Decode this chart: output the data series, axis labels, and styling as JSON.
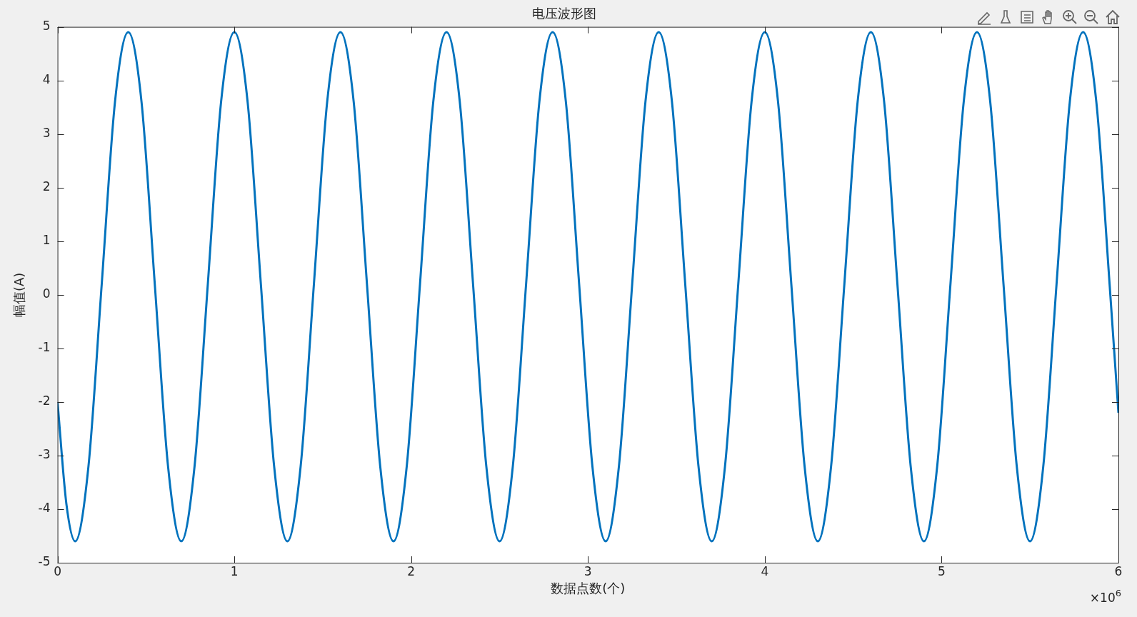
{
  "chart_data": {
    "type": "line",
    "title": "电压波形图",
    "xlabel": "数据点数(个)",
    "ylabel": "幅值(A)",
    "annotations": [
      "×10$^{6}$"
    ],
    "x": [
      0,
      0.05,
      0.1,
      0.175,
      0.25,
      0.325,
      0.4,
      0.475,
      0.55,
      0.625,
      0.7,
      0.775,
      0.85,
      0.925,
      1.0,
      1.075,
      1.15,
      1.225,
      1.3,
      1.375,
      1.45,
      1.525,
      1.6,
      1.675,
      1.75,
      1.825,
      1.9,
      1.975,
      2.05,
      2.125,
      2.2,
      2.275,
      2.35,
      2.425,
      2.5,
      2.575,
      2.65,
      2.725,
      2.8,
      2.875,
      2.95,
      3.025,
      3.1,
      3.175,
      3.25,
      3.325,
      3.4,
      3.475,
      3.55,
      3.625,
      3.7,
      3.775,
      3.85,
      3.925,
      4.0,
      4.075,
      4.15,
      4.225,
      4.3,
      4.375,
      4.45,
      4.525,
      4.6,
      4.675,
      4.75,
      4.825,
      4.9,
      4.975,
      5.05,
      5.125,
      5.2,
      5.275,
      5.35,
      5.425,
      5.5,
      5.575,
      5.65,
      5.725,
      5.8,
      5.875,
      5.95,
      6.0
    ],
    "series": [
      {
        "color": "#0072bd",
        "values": [
          -2.0,
          -3.9,
          -4.6,
          -3.2,
          0.2,
          3.6,
          4.9,
          3.6,
          0.2,
          -3.2,
          -4.6,
          -3.2,
          0.2,
          3.6,
          4.9,
          3.6,
          0.2,
          -3.2,
          -4.6,
          -3.2,
          0.2,
          3.6,
          4.9,
          3.6,
          0.2,
          -3.2,
          -4.6,
          -3.2,
          0.2,
          3.6,
          4.9,
          3.6,
          0.2,
          -3.2,
          -4.6,
          -3.2,
          0.2,
          3.6,
          4.9,
          3.6,
          0.2,
          -3.2,
          -4.6,
          -3.2,
          0.2,
          3.6,
          4.9,
          3.6,
          0.2,
          -3.2,
          -4.6,
          -3.2,
          0.2,
          3.6,
          4.9,
          3.6,
          0.2,
          -3.2,
          -4.6,
          -3.2,
          0.2,
          3.6,
          4.9,
          3.6,
          0.2,
          -3.2,
          -4.6,
          -3.2,
          0.2,
          3.6,
          4.9,
          3.6,
          0.2,
          -3.2,
          -4.6,
          -3.2,
          0.2,
          3.6,
          4.9,
          3.6,
          0.2,
          -2.2
        ]
      }
    ],
    "xlim": [
      0,
      6
    ],
    "xticks": [
      0,
      1,
      2,
      3,
      4,
      5,
      6
    ],
    "ylim": [
      -5,
      5
    ],
    "yticks": [
      -5,
      -4,
      -3,
      -2,
      -1,
      0,
      1,
      2,
      3,
      4,
      5
    ],
    "grid": false,
    "legend": false,
    "marker": "none",
    "line_style": "solid"
  }
}
